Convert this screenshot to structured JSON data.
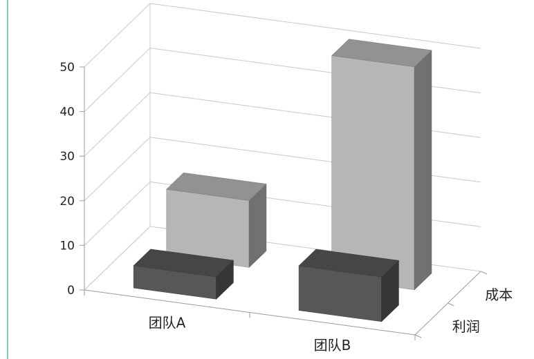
{
  "chart_data": {
    "type": "bar",
    "subtype": "3d-column",
    "categories": [
      "团队A",
      "团队B"
    ],
    "series": [
      {
        "name": "利润",
        "values": [
          5,
          10
        ],
        "color": "#555759"
      },
      {
        "name": "成本",
        "values": [
          15,
          50
        ],
        "color": "#b4b6b8"
      }
    ],
    "y_ticks": [
      "0",
      "10",
      "20",
      "30",
      "40",
      "50"
    ],
    "ylim": [
      0,
      50
    ],
    "grid": true,
    "legend": "none"
  },
  "colors": {
    "accent_border": "#7fc8c4",
    "gridline": "#c8c8c8",
    "axis": "#9a9a9a"
  }
}
